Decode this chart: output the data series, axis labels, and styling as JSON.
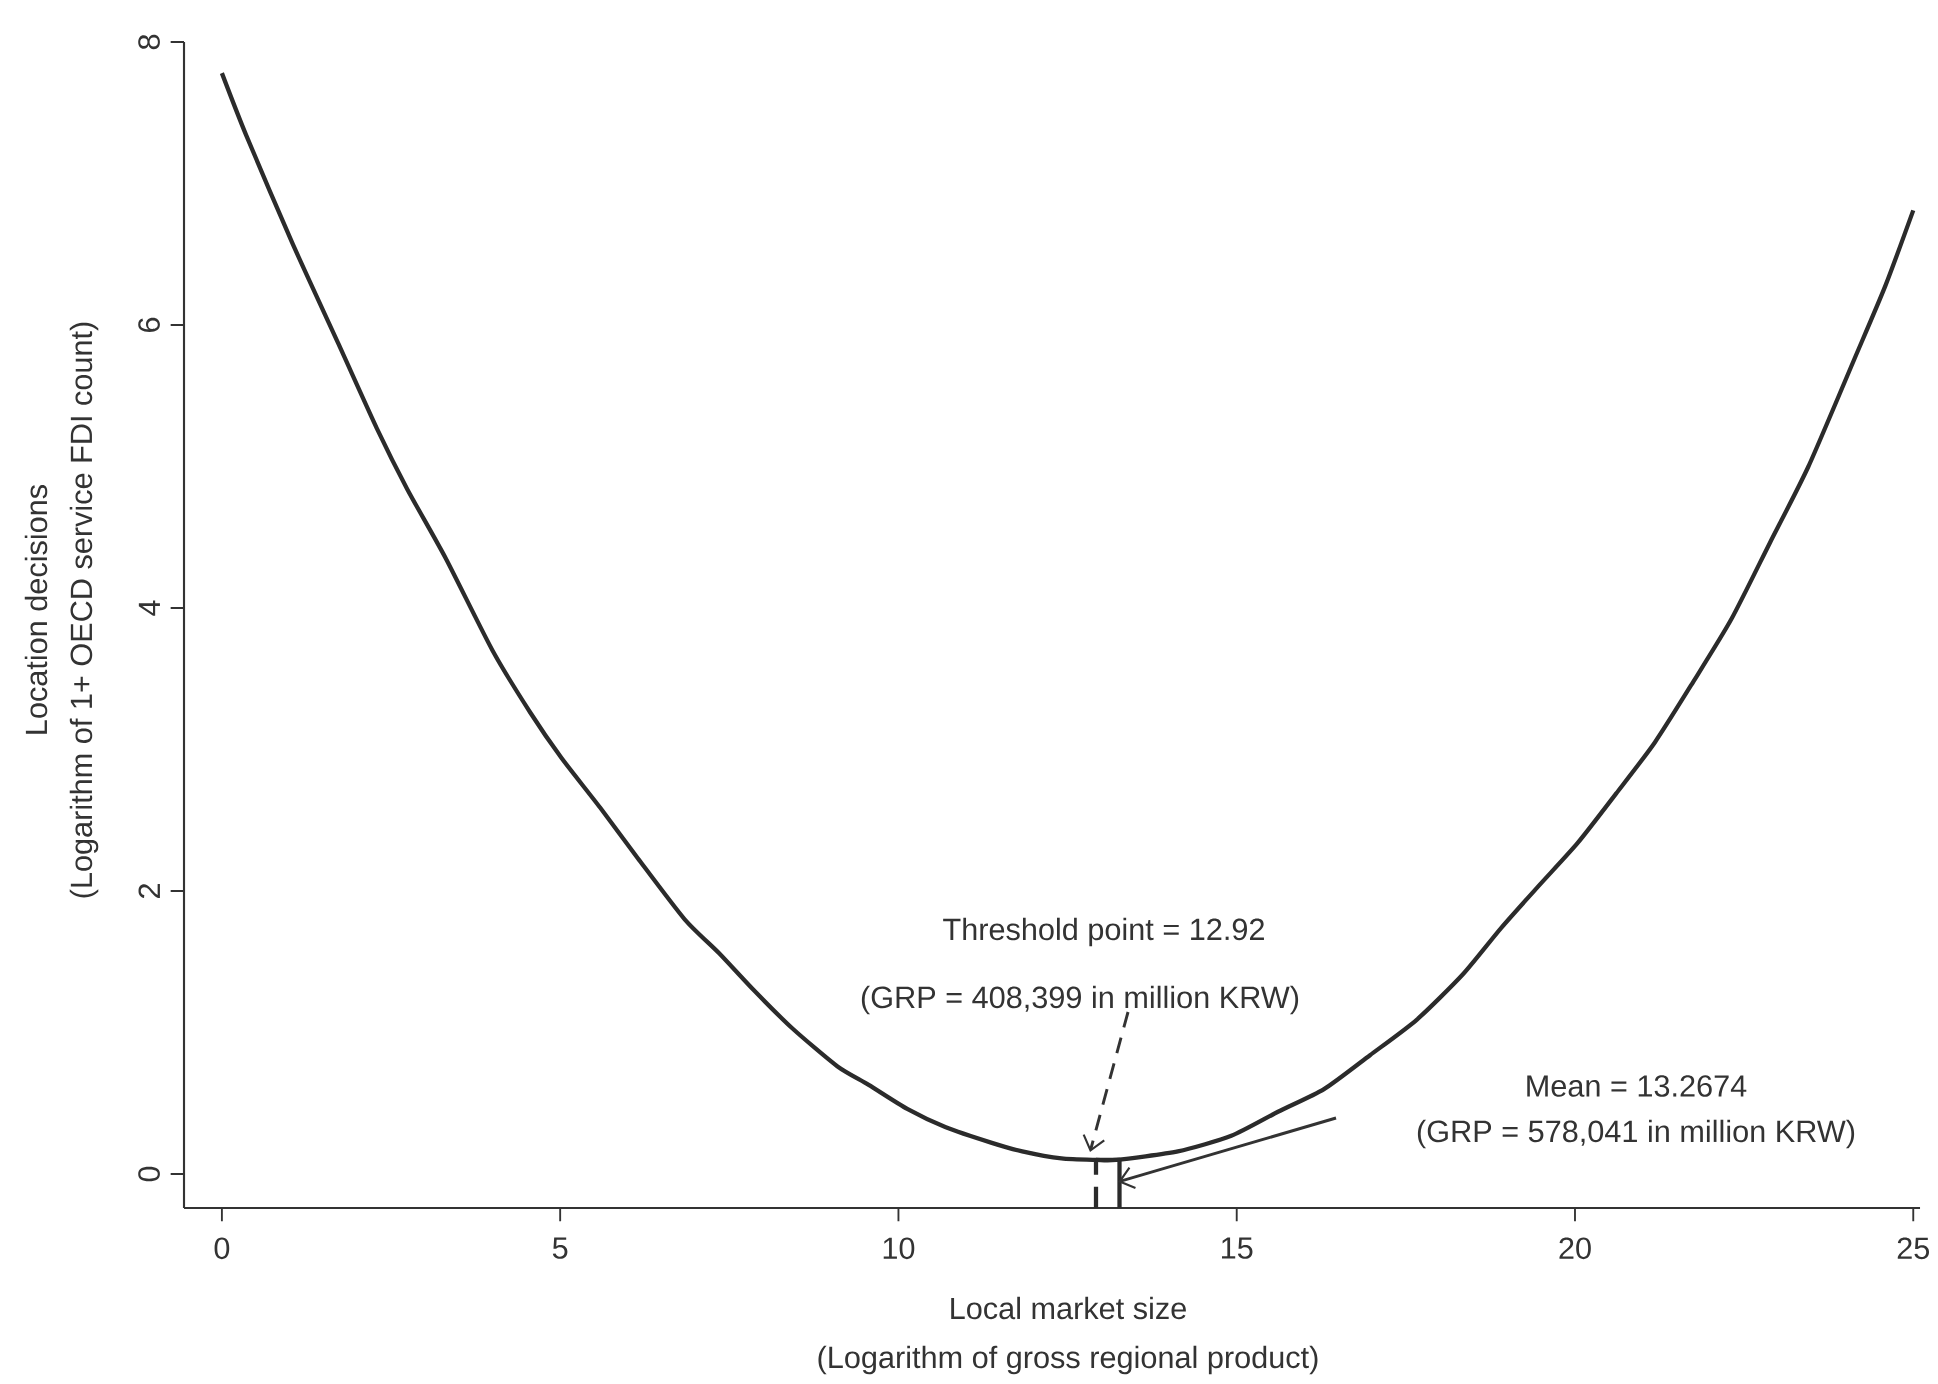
{
  "chart_data": {
    "type": "line",
    "xlabel": "Local market size",
    "ylabel": "Location decisions",
    "xlim": [
      -0.56,
      25.1
    ],
    "ylim": [
      -0.24,
      8.0
    ],
    "xticks": [
      0,
      5,
      10,
      15,
      20,
      25
    ],
    "yticks": [
      0,
      2,
      4,
      6,
      8
    ],
    "series": [
      {
        "color": "#2b2b2b",
        "x": [
          0,
          0.36,
          1.04,
          1.72,
          2.29,
          2.74,
          3.31,
          4.0,
          4.56,
          5.02,
          5.59,
          6.15,
          6.84,
          7.35,
          7.86,
          8.43,
          9.1,
          9.56,
          10.13,
          10.7,
          11.38,
          11.83,
          12.41,
          12.92,
          13.22,
          14.13,
          14.92,
          15.61,
          16.29,
          16.97,
          17.66,
          18.34,
          18.91,
          19.47,
          20.04,
          20.61,
          21.18,
          21.75,
          22.31,
          22.88,
          23.45,
          24.13,
          24.59,
          25
        ],
        "values": [
          7.78,
          7.34,
          6.58,
          5.87,
          5.27,
          4.84,
          4.35,
          3.7,
          3.26,
          2.94,
          2.59,
          2.23,
          1.8,
          1.56,
          1.3,
          1.03,
          0.76,
          0.63,
          0.46,
          0.33,
          0.22,
          0.16,
          0.11,
          0.1,
          0.1,
          0.16,
          0.27,
          0.44,
          0.6,
          0.84,
          1.09,
          1.41,
          1.74,
          2.04,
          2.34,
          2.69,
          3.05,
          3.48,
          3.92,
          4.46,
          5.0,
          5.76,
          6.28,
          6.81
        ]
      },
      {
        "color": "#2b2b2b",
        "line_style": "dashed",
        "x": [
          12.92,
          12.92
        ],
        "values": [
          -0.24,
          0.1
        ]
      },
      {
        "color": "#2b2b2b",
        "x": [
          12.92,
          13.2674,
          13.2674
        ],
        "values": [
          0.1,
          0.1,
          -0.24
        ]
      }
    ],
    "annotations": [
      "Threshold point = 12.92",
      "(GRP = 408,399 in million KRW)",
      "Mean = 13.2674",
      "(GRP = 578,041 in million KRW)",
      "(Logarithm of gross regional product)",
      "(Logarithm of 1+ OECD service FDI count)"
    ]
  }
}
